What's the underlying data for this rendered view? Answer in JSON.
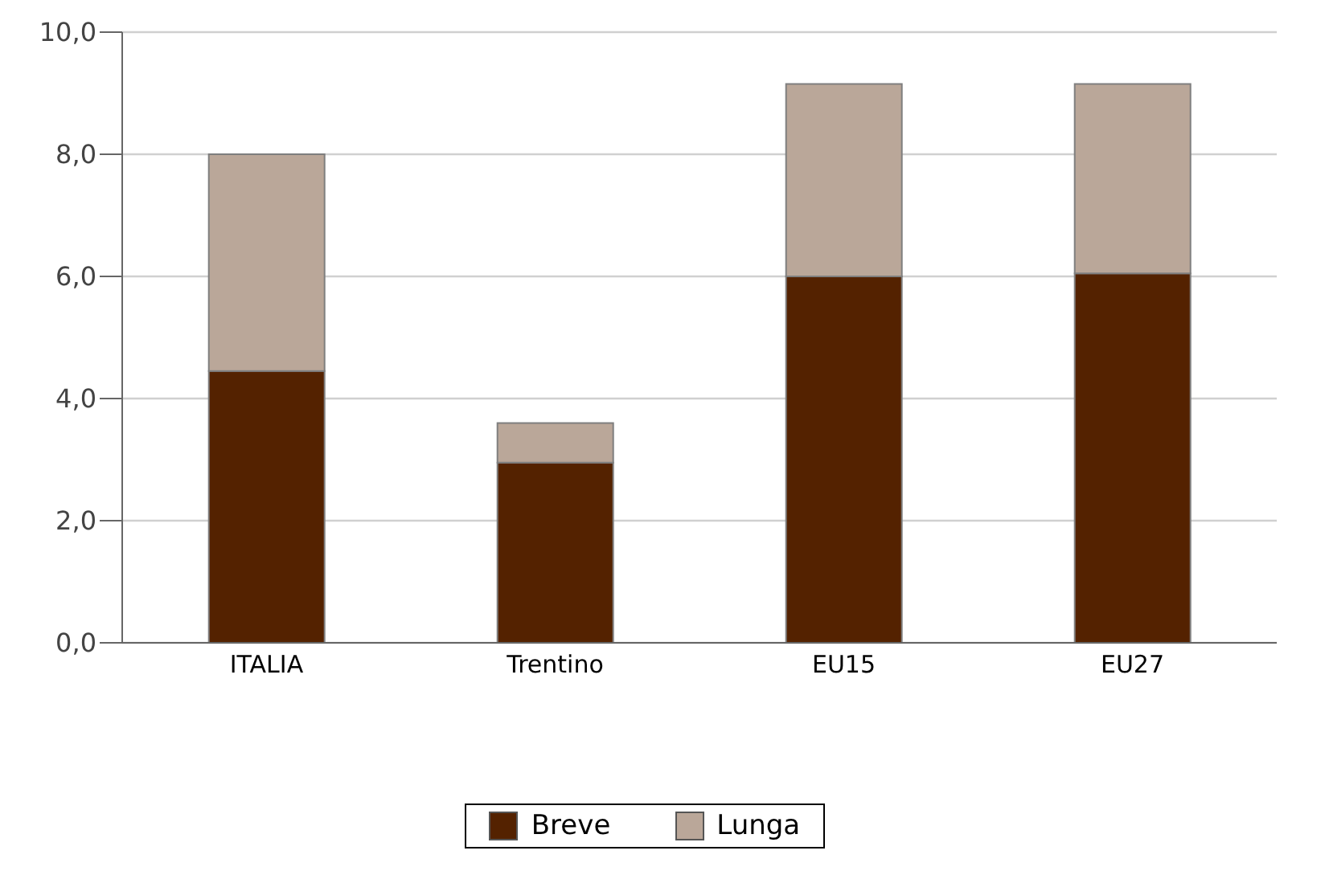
{
  "chart_data": {
    "type": "bar",
    "stacked": true,
    "categories": [
      "ITALIA",
      "Trentino",
      "EU15",
      "EU27"
    ],
    "series": [
      {
        "name": "Breve",
        "color": "#542200",
        "values": [
          4.45,
          2.95,
          6.0,
          6.05
        ]
      },
      {
        "name": "Lunga",
        "color": "#baa799",
        "values": [
          3.55,
          0.65,
          3.15,
          3.1
        ]
      }
    ],
    "ylim": [
      0,
      10
    ],
    "yticks": [
      {
        "value": 0,
        "label": "0,0"
      },
      {
        "value": 2,
        "label": "2,0"
      },
      {
        "value": 4,
        "label": "4,0"
      },
      {
        "value": 6,
        "label": "6,0"
      },
      {
        "value": 8,
        "label": "8,0"
      },
      {
        "value": 10,
        "label": "10,0"
      }
    ],
    "grid": "y",
    "legend": "bottom"
  }
}
